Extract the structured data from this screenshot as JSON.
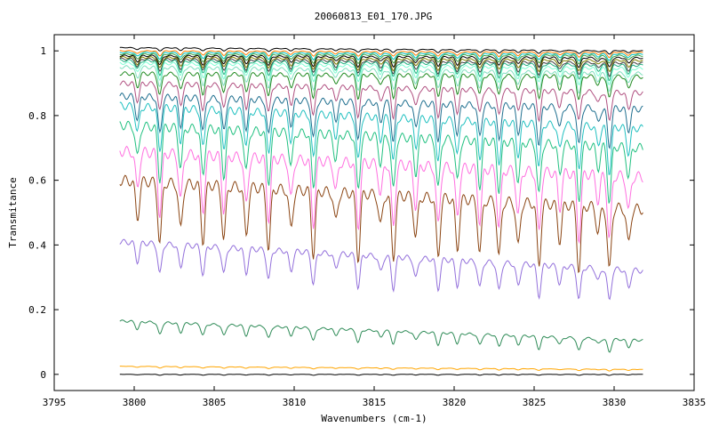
{
  "chart_data": {
    "type": "line",
    "title": "20060813_E01_170.JPG",
    "xlabel": "Wavenumbers (cm-1)",
    "ylabel": "Transmitance",
    "xlim": [
      3795,
      3835
    ],
    "ylim": [
      -0.05,
      1.05
    ],
    "x_ticks": [
      3795,
      3800,
      3805,
      3810,
      3815,
      3820,
      3825,
      3830,
      3835
    ],
    "y_ticks": [
      0,
      0.2,
      0.4,
      0.6,
      0.8,
      1
    ],
    "x_tick_labels": [
      "3795",
      "3800",
      "3805",
      "3810",
      "3815",
      "3820",
      "3825",
      "3830",
      "3835"
    ],
    "y_tick_labels": [
      "0",
      "0.2",
      "0.4",
      "0.6",
      "0.8",
      "1"
    ],
    "grid": false,
    "x_range_data": [
      3799.1,
      3831.8
    ],
    "absorption_lines_cm1": [
      3800.2,
      3801.6,
      3802.9,
      3804.3,
      3805.6,
      3807.0,
      3808.4,
      3809.8,
      3811.2,
      3812.6,
      3814.0,
      3815.4,
      3816.2,
      3817.6,
      3819.0,
      3820.2,
      3821.6,
      3822.8,
      3824.0,
      3825.3,
      3826.6,
      3827.8,
      3829.0,
      3829.7,
      3830.9
    ],
    "series": [
      {
        "baseline_start": 1.01,
        "baseline_end": 1.0,
        "depth": 0.01,
        "color": "#000000"
      },
      {
        "baseline_start": 1.0,
        "baseline_end": 0.995,
        "depth": 0.015,
        "color": "#ff7f00"
      },
      {
        "baseline_start": 0.995,
        "baseline_end": 0.99,
        "depth": 0.02,
        "color": "#00c0c0"
      },
      {
        "baseline_start": 0.99,
        "baseline_end": 0.985,
        "depth": 0.025,
        "color": "#40a040"
      },
      {
        "baseline_start": 0.985,
        "baseline_end": 0.978,
        "depth": 0.03,
        "color": "#000000"
      },
      {
        "baseline_start": 0.98,
        "baseline_end": 0.97,
        "depth": 0.035,
        "color": "#808000"
      },
      {
        "baseline_start": 0.975,
        "baseline_end": 0.962,
        "depth": 0.04,
        "color": "#404040"
      },
      {
        "baseline_start": 0.97,
        "baseline_end": 0.955,
        "depth": 0.045,
        "color": "#20b080"
      },
      {
        "baseline_start": 0.962,
        "baseline_end": 0.945,
        "depth": 0.05,
        "color": "#7fffd4"
      },
      {
        "baseline_start": 0.95,
        "baseline_end": 0.93,
        "depth": 0.06,
        "color": "#80e0c0"
      },
      {
        "baseline_start": 0.93,
        "baseline_end": 0.92,
        "depth": 0.07,
        "color": "#228b22"
      },
      {
        "baseline_start": 0.9,
        "baseline_end": 0.87,
        "depth": 0.09,
        "color": "#b05080"
      },
      {
        "baseline_start": 0.86,
        "baseline_end": 0.82,
        "depth": 0.12,
        "color": "#1f6f8f"
      },
      {
        "baseline_start": 0.83,
        "baseline_end": 0.76,
        "depth": 0.14,
        "color": "#20c0c0"
      },
      {
        "baseline_start": 0.77,
        "baseline_end": 0.7,
        "depth": 0.17,
        "color": "#20c080"
      },
      {
        "baseline_start": 0.69,
        "baseline_end": 0.61,
        "depth": 0.2,
        "color": "#ff70e0"
      },
      {
        "baseline_start": 0.6,
        "baseline_end": 0.51,
        "depth": 0.2,
        "color": "#8b4513"
      },
      {
        "baseline_start": 0.41,
        "baseline_end": 0.32,
        "depth": 0.1,
        "color": "#9370db"
      },
      {
        "baseline_start": 0.165,
        "baseline_end": 0.105,
        "depth": 0.04,
        "color": "#2e8b57"
      },
      {
        "baseline_start": 0.025,
        "baseline_end": 0.015,
        "depth": 0.005,
        "color": "#ffa500"
      },
      {
        "baseline_start": 0.0,
        "baseline_end": 0.0,
        "depth": 0.003,
        "color": "#000000"
      }
    ]
  }
}
